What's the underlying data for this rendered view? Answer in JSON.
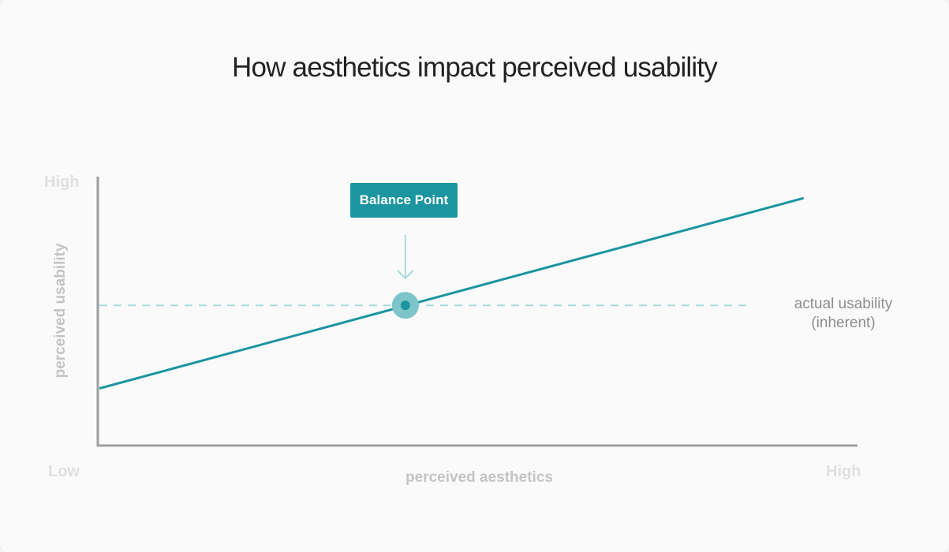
{
  "chart_data": {
    "type": "line",
    "title": "How aesthetics impact perceived usability",
    "xlabel": "perceived aesthetics",
    "ylabel": "perceived usability",
    "x_ticks": {
      "low": "Low",
      "high": "High"
    },
    "y_ticks": {
      "high": "High"
    },
    "xlim": [
      0,
      100
    ],
    "ylim": [
      0,
      100
    ],
    "series": [
      {
        "x": [
          0,
          93
        ],
        "y": [
          21,
          92
        ],
        "color": "#1b95a0"
      }
    ],
    "reference_line": {
      "y": 52,
      "x_range": [
        0,
        86
      ],
      "style": "dashed",
      "color": "#a8dcdc",
      "label_lines": [
        "actual usability",
        "(inherent)"
      ]
    },
    "annotation": {
      "label": "Balance Point",
      "x": 40.4,
      "y": 52,
      "color": "#1b95a0",
      "halo_color": "#7cc5ca",
      "arrow_color": "#a8dcdc"
    },
    "axis_color": "#9e9e9e",
    "grid": false
  }
}
